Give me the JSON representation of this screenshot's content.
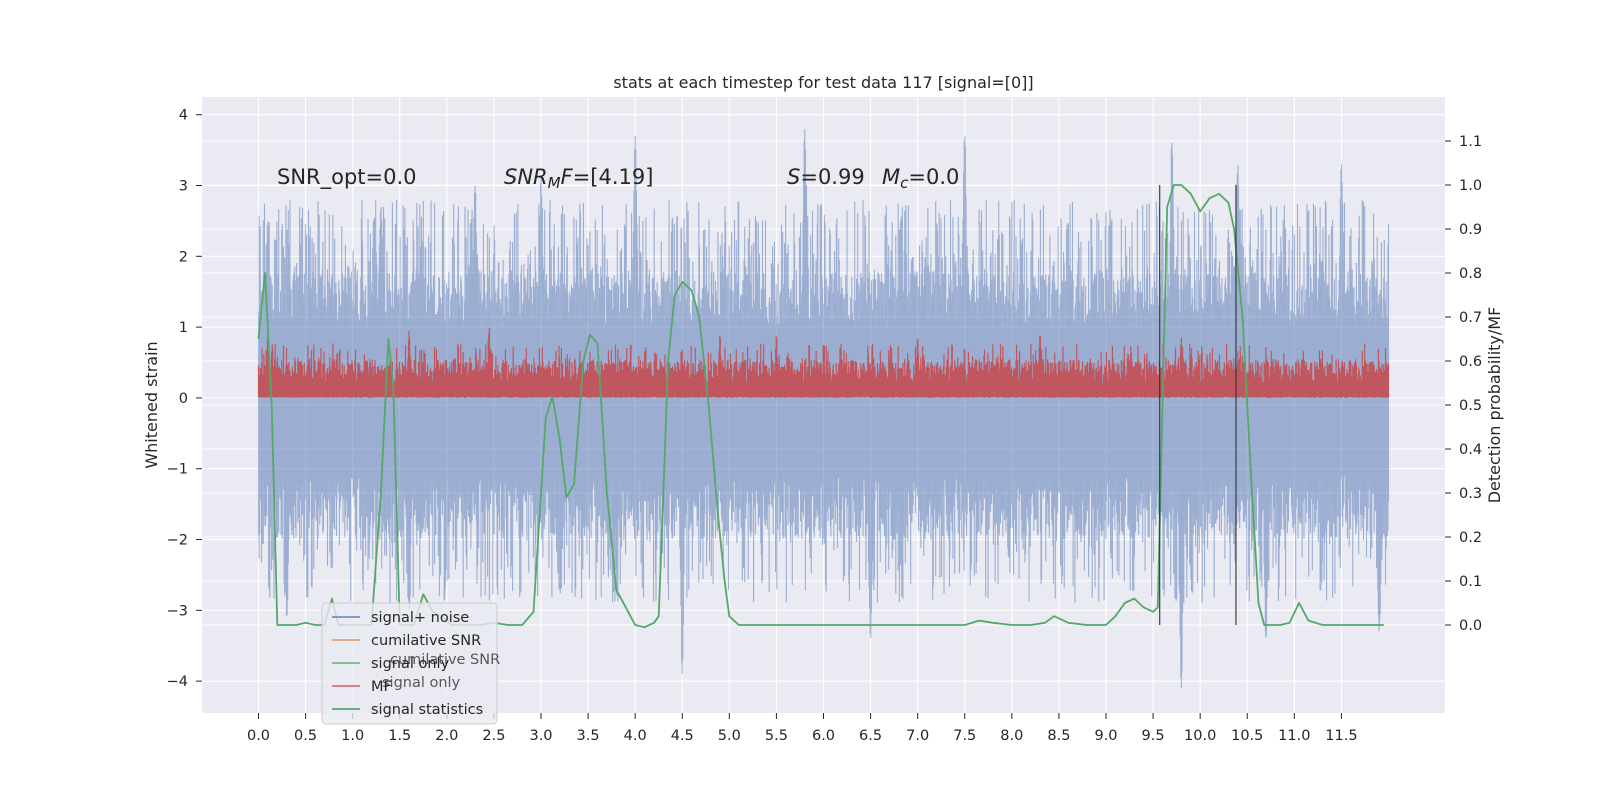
{
  "chart_data": {
    "type": "line",
    "title": "stats at each timestep for test data 117 [signal=[0]]",
    "xlabel": "",
    "ylabel_left": "Whitened strain",
    "ylabel_right": "Detection probability/MF",
    "xlim": [
      -0.6,
      12.6
    ],
    "ylim_left": [
      -4.45,
      4.25
    ],
    "ylim_right": [
      -0.2,
      1.2
    ],
    "xticks": [
      0.0,
      0.5,
      1.0,
      1.5,
      2.0,
      2.5,
      3.0,
      3.5,
      4.0,
      4.5,
      5.0,
      5.5,
      6.0,
      6.5,
      7.0,
      7.5,
      8.0,
      8.5,
      9.0,
      9.5,
      10.0,
      10.5,
      11.0,
      11.5
    ],
    "xtick_labels": [
      "0.0",
      "0.5",
      "1.0",
      "1.5",
      "2.0",
      "2.5",
      "3.0",
      "3.5",
      "4.0",
      "4.5",
      "5.0",
      "5.5",
      "6.0",
      "6.5",
      "7.0",
      "7.5",
      "8.0",
      "8.5",
      "9.0",
      "9.5",
      "10.0",
      "10.5",
      "11.0",
      "11.5"
    ],
    "yticks_left": [
      4,
      3,
      2,
      1,
      0,
      -1,
      -2,
      -3,
      -4
    ],
    "ytick_labels_left": [
      "4",
      "3",
      "2",
      "1",
      "0",
      "−1",
      "−2",
      "−3",
      "−4"
    ],
    "yticks_right": [
      1.1,
      1.0,
      0.9,
      0.8,
      0.7,
      0.6,
      0.5,
      0.4,
      0.3,
      0.2,
      0.1,
      0.0
    ],
    "ytick_labels_right": [
      "1.1",
      "1.0",
      "0.9",
      "0.8",
      "0.7",
      "0.6",
      "0.5",
      "0.4",
      "0.3",
      "0.2",
      "0.1",
      "0.0"
    ],
    "grid": true,
    "annotations": {
      "snr_opt": "SNR_opt=0.0",
      "snr_mf": "[4.19]",
      "s_value": "0.99",
      "mc_value": "0.0"
    },
    "series": [
      {
        "name": "signal+ noise",
        "axis": "left",
        "color": "#4c72b0",
        "opacity": 0.5,
        "x_range": [
          0.0,
          12.0
        ],
        "envelope": {
          "upper_typical": 1.8,
          "lower_typical": -2.0,
          "upper_peaks": [
            [
              0.1,
              2.5
            ],
            [
              1.3,
              2.7
            ],
            [
              2.3,
              3.0
            ],
            [
              3.0,
              3.1
            ],
            [
              4.0,
              3.7
            ],
            [
              5.8,
              3.8
            ],
            [
              7.5,
              3.7
            ],
            [
              9.7,
              3.6
            ],
            [
              10.4,
              3.3
            ],
            [
              11.5,
              3.3
            ]
          ],
          "lower_peaks": [
            [
              0.3,
              -3.1
            ],
            [
              1.6,
              -3.0
            ],
            [
              4.5,
              -3.9
            ],
            [
              6.5,
              -3.4
            ],
            [
              9.8,
              -4.1
            ],
            [
              10.7,
              -3.4
            ],
            [
              11.9,
              -3.3
            ]
          ]
        }
      },
      {
        "name": "cumilative SNR",
        "axis": "right",
        "color": "#dd8452",
        "opacity": 0.5,
        "x": [],
        "y": []
      },
      {
        "name": "signal only",
        "axis": "left",
        "color": "#55a868",
        "opacity": 0.5,
        "x": [],
        "y": []
      },
      {
        "name": "MF",
        "axis": "left",
        "color": "#c44e52",
        "opacity": 0.9,
        "x_range": [
          0.0,
          12.0
        ],
        "envelope": {
          "upper_typical": 0.55,
          "lower_typical": 0.02,
          "upper_peaks": [
            [
              0.1,
              0.9
            ],
            [
              1.6,
              0.95
            ],
            [
              2.45,
              1.0
            ],
            [
              4.9,
              0.9
            ],
            [
              5.5,
              0.9
            ],
            [
              7.0,
              0.85
            ],
            [
              8.3,
              0.9
            ],
            [
              9.8,
              0.85
            ]
          ]
        }
      },
      {
        "name": "signal statistics",
        "axis": "right",
        "color": "#55a868",
        "opacity": 1.0,
        "x": [
          0.0,
          0.07,
          0.14,
          0.2,
          0.3,
          0.4,
          0.5,
          0.6,
          0.7,
          0.78,
          0.85,
          0.92,
          1.0,
          1.1,
          1.2,
          1.3,
          1.38,
          1.43,
          1.5,
          1.57,
          1.65,
          1.75,
          1.85,
          1.95,
          2.05,
          2.2,
          2.35,
          2.5,
          2.65,
          2.8,
          2.92,
          3.0,
          3.05,
          3.12,
          3.2,
          3.27,
          3.35,
          3.45,
          3.52,
          3.6,
          3.7,
          3.8,
          3.9,
          4.0,
          4.1,
          4.2,
          4.25,
          4.3,
          4.35,
          4.42,
          4.5,
          4.6,
          4.68,
          4.78,
          4.88,
          4.95,
          5.0,
          5.1,
          5.3,
          5.5,
          5.8,
          6.2,
          6.6,
          7.0,
          7.3,
          7.5,
          7.65,
          7.8,
          8.0,
          8.2,
          8.35,
          8.45,
          8.6,
          8.8,
          9.0,
          9.1,
          9.2,
          9.3,
          9.4,
          9.5,
          9.55,
          9.6,
          9.65,
          9.72,
          9.8,
          9.9,
          10.0,
          10.1,
          10.2,
          10.3,
          10.36,
          10.45,
          10.55,
          10.62,
          10.68,
          10.75,
          10.85,
          10.95,
          11.05,
          11.15,
          11.3,
          11.5,
          11.7,
          11.85,
          11.95
        ],
        "y": [
          0.65,
          0.8,
          0.5,
          0.0,
          0.0,
          0.0,
          0.005,
          0.0,
          0.0,
          0.06,
          0.0,
          0.0,
          0.0,
          0.0,
          0.0,
          0.3,
          0.65,
          0.55,
          0.0,
          0.0,
          0.0,
          0.07,
          0.03,
          0.02,
          0.0,
          0.0,
          0.0,
          0.005,
          0.0,
          0.0,
          0.03,
          0.3,
          0.47,
          0.52,
          0.42,
          0.29,
          0.32,
          0.6,
          0.66,
          0.64,
          0.3,
          0.08,
          0.04,
          0.0,
          -0.005,
          0.005,
          0.02,
          0.3,
          0.6,
          0.75,
          0.78,
          0.76,
          0.7,
          0.5,
          0.25,
          0.1,
          0.02,
          0.0,
          0.0,
          0.0,
          0.0,
          0.0,
          0.0,
          0.0,
          0.0,
          0.0,
          0.01,
          0.005,
          0.0,
          0.0,
          0.005,
          0.02,
          0.005,
          0.0,
          0.0,
          0.02,
          0.05,
          0.06,
          0.04,
          0.03,
          0.04,
          0.5,
          0.95,
          1.0,
          1.0,
          0.98,
          0.94,
          0.97,
          0.98,
          0.96,
          0.9,
          0.7,
          0.3,
          0.05,
          0.0,
          0.0,
          0.0,
          0.005,
          0.05,
          0.01,
          0.0,
          0.0,
          0.0,
          0.0,
          0.0
        ]
      }
    ],
    "vertical_lines": [
      {
        "x": 9.57,
        "y_range_right": [
          0.0,
          1.0
        ],
        "color": "#333333"
      },
      {
        "x": 10.38,
        "y_range_right": [
          0.0,
          1.0
        ],
        "color": "#333333"
      }
    ],
    "legend": {
      "location": "lower-left",
      "entries": [
        {
          "label": "signal+ noise",
          "color": "#4c72b0"
        },
        {
          "label": "cumilative SNR",
          "color": "#dd8452"
        },
        {
          "label": "signal only",
          "color": "#55a868"
        },
        {
          "label": "MF",
          "color": "#c44e52"
        },
        {
          "label": "signal statistics",
          "color": "#55a868"
        }
      ],
      "ghost_text": [
        "cumilative SNR",
        "signal only"
      ]
    }
  },
  "colors": {
    "axes_bg": "#eaeaf2",
    "grid": "#ffffff",
    "text": "#262626",
    "page_bg": "#ffffff"
  }
}
